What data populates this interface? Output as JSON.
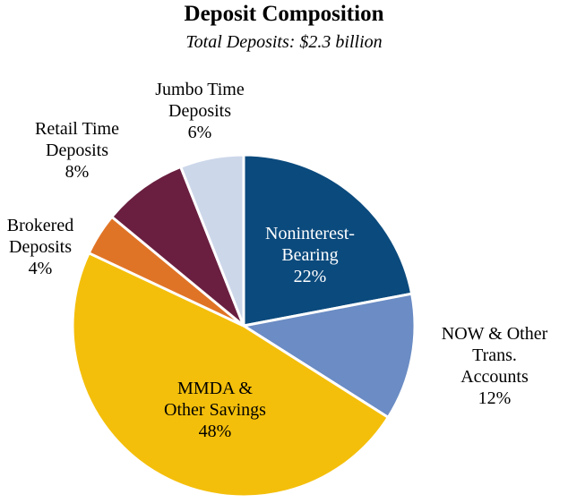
{
  "chart_data": {
    "type": "pie",
    "title": "Deposit Composition",
    "subtitle": "Total Deposits: $2.3 billion",
    "slices": [
      {
        "label_lines": [
          "Noninterest-",
          "Bearing"
        ],
        "pct_label": "22%",
        "value": 22,
        "color": "#0b4a7d",
        "label_color": "#ffffff"
      },
      {
        "label_lines": [
          "NOW & Other",
          "Trans.",
          "Accounts"
        ],
        "pct_label": "12%",
        "value": 12,
        "color": "#6b8cc4",
        "label_color": "#000000"
      },
      {
        "label_lines": [
          "MMDA &",
          "Other Savings"
        ],
        "pct_label": "48%",
        "value": 48,
        "color": "#f4bf0b",
        "label_color": "#000000"
      },
      {
        "label_lines": [
          "Brokered",
          "Deposits"
        ],
        "pct_label": "4%",
        "value": 4,
        "color": "#e07426",
        "label_color": "#000000"
      },
      {
        "label_lines": [
          "Retail Time",
          "Deposits"
        ],
        "pct_label": "8%",
        "value": 8,
        "color": "#6a1f40",
        "label_color": "#000000"
      },
      {
        "label_lines": [
          "Jumbo Time",
          "Deposits"
        ],
        "pct_label": "6%",
        "value": 6,
        "color": "#ccd7ea",
        "label_color": "#000000"
      }
    ]
  }
}
